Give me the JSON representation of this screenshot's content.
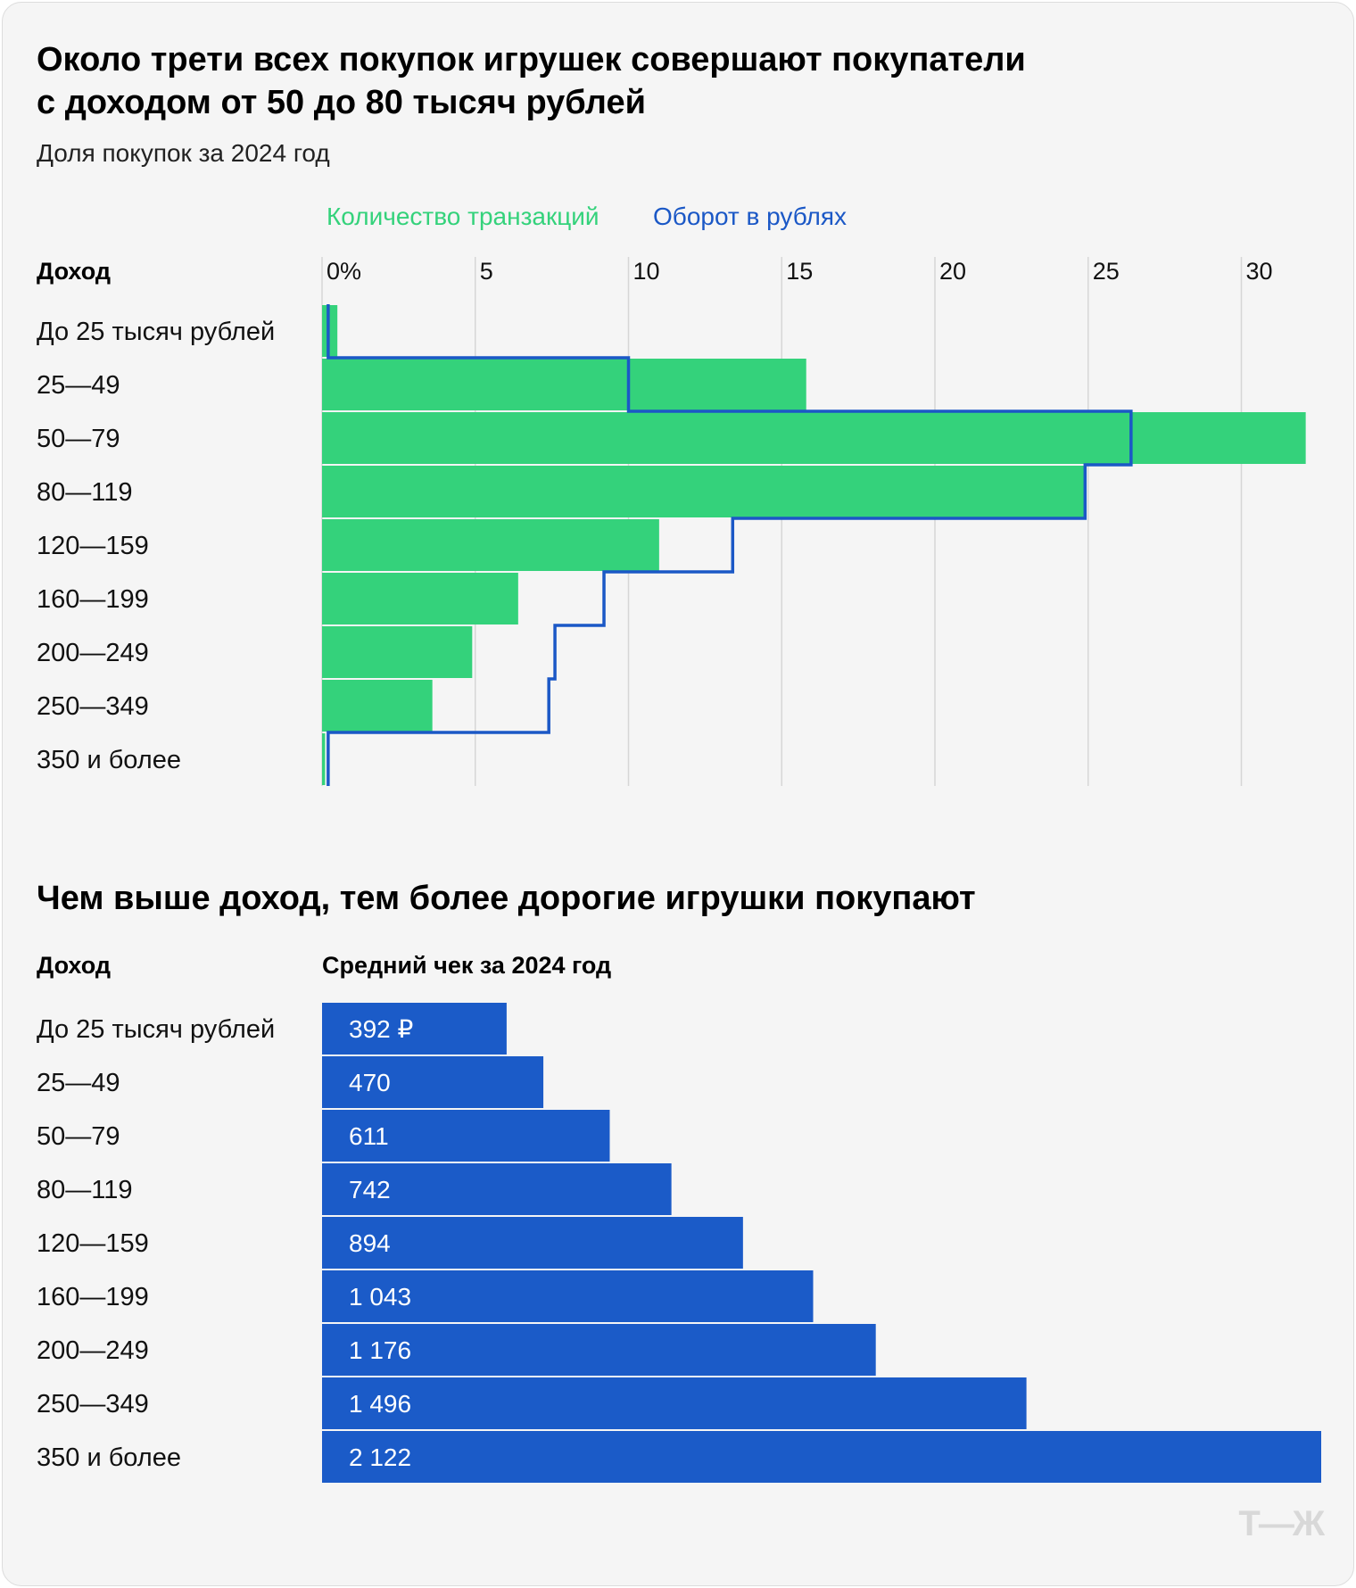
{
  "colors": {
    "transactions": "#34d27b",
    "turnover": "#1b58c6",
    "avg_check": "#1b5bc8",
    "grid": "#d6d6d6"
  },
  "logo": "Т—Ж",
  "chart_data": [
    {
      "type": "bar",
      "title": "Около трети всех покупок игрушек совершают покупатели с доходом от 50 до 80 тысяч рублей",
      "title_lines": [
        "Около трети всех покупок игрушек совершают покупатели",
        "с доходом от 50 до 80 тысяч рублей"
      ],
      "subtitle": "Доля покупок за 2024 год",
      "category_header": "Доход",
      "categories": [
        "До 25 тысяч рублей",
        "25—49",
        "50—79",
        "80—119",
        "120—159",
        "160—199",
        "200—249",
        "250—349",
        "350 и более"
      ],
      "series": [
        {
          "name": "Количество транзакций",
          "kind": "bar",
          "values": [
            0.5,
            15.8,
            32.1,
            24.9,
            11.0,
            6.4,
            4.9,
            3.6,
            0.1
          ]
        },
        {
          "name": "Оборот в рублях",
          "kind": "step-line",
          "values": [
            0.2,
            10.0,
            26.4,
            24.9,
            13.4,
            9.2,
            7.6,
            7.4,
            0.2
          ]
        }
      ],
      "xlim": [
        0,
        32
      ],
      "xticks": [
        0,
        5,
        10,
        15,
        20,
        25,
        30
      ],
      "xtick_labels": [
        "0%",
        "5",
        "10",
        "15",
        "20",
        "25",
        "30"
      ],
      "grid": true,
      "legend": "top"
    },
    {
      "type": "bar",
      "title": "Чем выше доход, тем более дорогие игрушки покупают",
      "category_header": "Доход",
      "value_header": "Средний чек за 2024 год",
      "categories": [
        "До 25 тысяч рублей",
        "25—49",
        "50—79",
        "80—119",
        "120—159",
        "160—199",
        "200—249",
        "250—349",
        "350 и более"
      ],
      "values": [
        392,
        470,
        611,
        742,
        894,
        1043,
        1176,
        1496,
        2122
      ],
      "value_labels": [
        "392 ₽",
        "470",
        "611",
        "742",
        "894",
        "1 043",
        "1 176",
        "1 496",
        "2 122"
      ],
      "xlim": [
        0,
        2122
      ],
      "grid": false
    }
  ]
}
